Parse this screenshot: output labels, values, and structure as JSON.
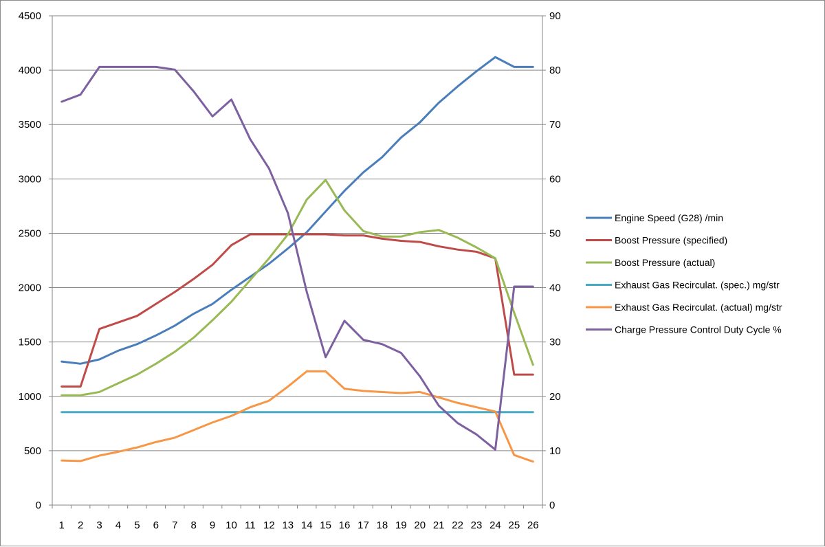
{
  "chart_data": {
    "type": "line",
    "categories": [
      1,
      2,
      3,
      4,
      5,
      6,
      7,
      8,
      9,
      10,
      11,
      12,
      13,
      14,
      15,
      16,
      17,
      18,
      19,
      20,
      21,
      22,
      23,
      24,
      25,
      26
    ],
    "y_left": {
      "min": 0,
      "max": 4500,
      "step": 500,
      "ticks": [
        "0",
        "500",
        "1000",
        "1500",
        "2000",
        "2500",
        "3000",
        "3500",
        "4000",
        "4500"
      ]
    },
    "y_right": {
      "min": 0,
      "max": 90,
      "step": 10,
      "ticks": [
        "0",
        "10",
        "20",
        "30",
        "40",
        "50",
        "60",
        "70",
        "80",
        "90"
      ]
    },
    "grid": "horizontal",
    "legend_position": "right",
    "series": [
      {
        "name": "Engine Speed (G28)  /min",
        "color": "#4a7ebb",
        "axis": "left",
        "values": [
          1320,
          1300,
          1340,
          1420,
          1480,
          1560,
          1650,
          1760,
          1850,
          1980,
          2100,
          2220,
          2360,
          2510,
          2700,
          2890,
          3060,
          3200,
          3380,
          3520,
          3700,
          3850,
          3990,
          4120,
          4030,
          4030
        ]
      },
      {
        "name": "Boost Pressure (specified)",
        "color": "#be4b48",
        "axis": "left",
        "values": [
          1090,
          1090,
          1620,
          1680,
          1740,
          1850,
          1960,
          2080,
          2210,
          2390,
          2490,
          2490,
          2490,
          2490,
          2490,
          2480,
          2480,
          2450,
          2430,
          2420,
          2380,
          2350,
          2330,
          2270,
          1200,
          1200
        ]
      },
      {
        "name": "Boost Pressure (actual)",
        "color": "#98b954",
        "axis": "left",
        "values": [
          1010,
          1010,
          1040,
          1120,
          1200,
          1300,
          1410,
          1540,
          1700,
          1870,
          2070,
          2270,
          2490,
          2810,
          2990,
          2710,
          2520,
          2470,
          2470,
          2510,
          2530,
          2460,
          2370,
          2270,
          1770,
          1290
        ]
      },
      {
        "name": "Exhaust Gas Recirculat. (spec.)  mg/str",
        "color": "#46aac5",
        "axis": "left",
        "values": [
          855,
          855,
          855,
          855,
          855,
          855,
          855,
          855,
          855,
          855,
          855,
          855,
          855,
          855,
          855,
          855,
          855,
          855,
          855,
          855,
          855,
          855,
          855,
          855,
          855,
          855
        ]
      },
      {
        "name": "Exhaust Gas Recirculat. (actual)  mg/str",
        "color": "#f79646",
        "axis": "left",
        "values": [
          410,
          405,
          455,
          490,
          530,
          580,
          620,
          690,
          760,
          820,
          900,
          960,
          1090,
          1230,
          1230,
          1070,
          1050,
          1040,
          1030,
          1040,
          990,
          940,
          900,
          860,
          460,
          400
        ]
      },
      {
        "name": "Charge Pressure Control Duty Cycle  %",
        "color": "#7d60a0",
        "axis": "right",
        "values": [
          74.2,
          75.5,
          80.6,
          80.6,
          80.6,
          80.6,
          80.1,
          76.1,
          71.5,
          74.6,
          67.3,
          61.9,
          53.7,
          39.2,
          27.2,
          33.9,
          30.4,
          29.6,
          28,
          23.7,
          18.3,
          15.1,
          13,
          10.2,
          40.2,
          40.2
        ]
      }
    ]
  }
}
